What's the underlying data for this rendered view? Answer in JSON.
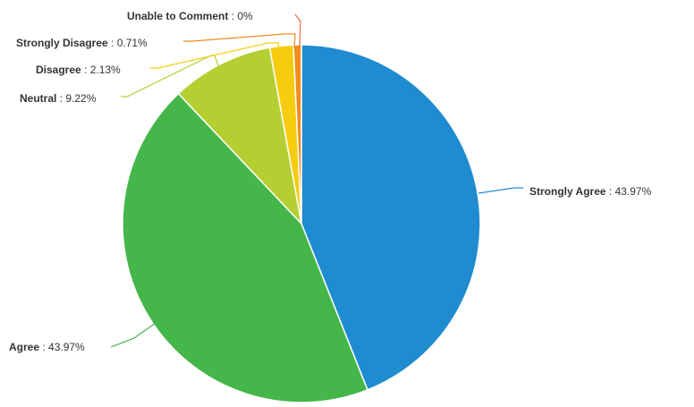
{
  "chart_data": {
    "type": "pie",
    "slices": [
      {
        "name": "Strongly Agree",
        "value": 43.97,
        "value_label": "43.97%",
        "color": "#1f8bd0"
      },
      {
        "name": "Agree",
        "value": 43.97,
        "value_label": "43.97%",
        "color": "#45b649"
      },
      {
        "name": "Neutral",
        "value": 9.22,
        "value_label": "9.22%",
        "color": "#b5cf32"
      },
      {
        "name": "Disagree",
        "value": 2.13,
        "value_label": "2.13%",
        "color": "#f5cd0e"
      },
      {
        "name": "Strongly Disagree",
        "value": 0.71,
        "value_label": "0.71%",
        "color": "#f28a1d"
      },
      {
        "name": "Unable to Comment",
        "value": 0,
        "value_label": "0%",
        "color": "#ef6a3a"
      }
    ],
    "label_separator": " : "
  }
}
